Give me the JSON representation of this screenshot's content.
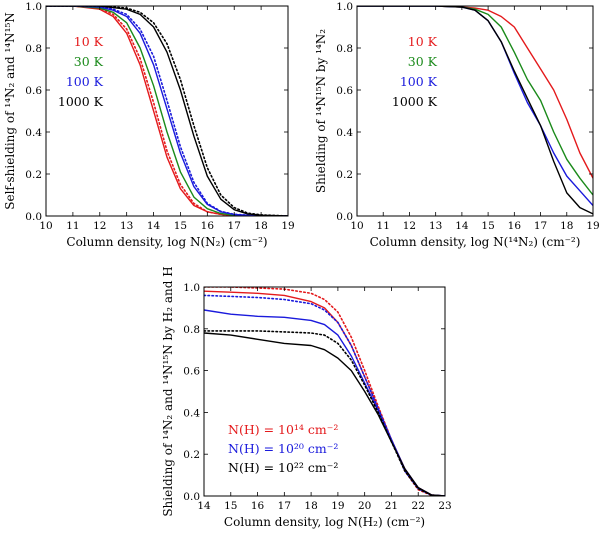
{
  "chart_data": [
    {
      "type": "line",
      "xlabel": "Column density, log N(N₂) (cm⁻²)",
      "ylabel": "Self-shielding of ¹⁴N₂ and ¹⁴N¹⁵N",
      "xlim": [
        10,
        19
      ],
      "ylim": [
        0.0,
        1.0
      ],
      "xticks": [
        "10",
        "11",
        "12",
        "13",
        "14",
        "15",
        "16",
        "17",
        "18",
        "19"
      ],
      "yticks": [
        "0.0",
        "0.2",
        "0.4",
        "0.6",
        "0.8",
        "1.0"
      ],
      "legend": [
        {
          "label": "10 K",
          "color": "#e41a1c"
        },
        {
          "label": "30 K",
          "color": "#1a8a1a"
        },
        {
          "label": "100 K",
          "color": "#1a1adc"
        },
        {
          "label": "1000 K",
          "color": "#000000"
        }
      ],
      "series": [
        {
          "name": "10 K",
          "color": "#e41a1c",
          "style": "solid",
          "x": [
            10,
            11,
            12,
            12.5,
            13,
            13.5,
            14,
            14.5,
            15,
            15.5,
            16,
            16.5,
            17,
            18,
            19
          ],
          "y": [
            1.0,
            1.0,
            0.985,
            0.95,
            0.87,
            0.72,
            0.5,
            0.28,
            0.13,
            0.05,
            0.02,
            0.008,
            0.003,
            0.0,
            0.0
          ]
        },
        {
          "name": "10 K",
          "color": "#e41a1c",
          "style": "dotted",
          "x": [
            10,
            11,
            12,
            12.5,
            13,
            13.5,
            14,
            14.5,
            15,
            15.5,
            16,
            16.5,
            17,
            18,
            19
          ],
          "y": [
            1.0,
            1.0,
            0.99,
            0.96,
            0.89,
            0.75,
            0.54,
            0.31,
            0.15,
            0.06,
            0.02,
            0.008,
            0.003,
            0.0,
            0.0
          ]
        },
        {
          "name": "30 K",
          "color": "#1a8a1a",
          "style": "solid",
          "x": [
            10,
            11,
            12,
            12.5,
            13,
            13.5,
            14,
            14.5,
            15,
            15.5,
            16,
            16.5,
            17,
            18,
            19
          ],
          "y": [
            1.0,
            1.0,
            0.99,
            0.97,
            0.92,
            0.8,
            0.62,
            0.4,
            0.21,
            0.09,
            0.035,
            0.012,
            0.004,
            0.0,
            0.0
          ]
        },
        {
          "name": "100 K",
          "color": "#1a1adc",
          "style": "solid",
          "x": [
            10,
            11,
            12,
            12.5,
            13,
            13.5,
            14,
            14.5,
            15,
            15.5,
            16,
            16.5,
            17,
            18,
            19
          ],
          "y": [
            1.0,
            1.0,
            0.995,
            0.98,
            0.95,
            0.87,
            0.72,
            0.51,
            0.3,
            0.14,
            0.055,
            0.02,
            0.007,
            0.0,
            0.0
          ]
        },
        {
          "name": "100 K",
          "color": "#1a1adc",
          "style": "dotted",
          "x": [
            10,
            11,
            12,
            12.5,
            13,
            13.5,
            14,
            14.5,
            15,
            15.5,
            16,
            16.5,
            17,
            18,
            19
          ],
          "y": [
            1.0,
            1.0,
            0.997,
            0.985,
            0.96,
            0.89,
            0.76,
            0.55,
            0.33,
            0.16,
            0.06,
            0.022,
            0.008,
            0.0,
            0.0
          ]
        },
        {
          "name": "1000 K",
          "color": "#000000",
          "style": "solid",
          "x": [
            10,
            11,
            12,
            13,
            13.5,
            14,
            14.5,
            15,
            15.5,
            16,
            16.5,
            17,
            17.5,
            18,
            19
          ],
          "y": [
            1.0,
            1.0,
            1.0,
            0.985,
            0.96,
            0.9,
            0.78,
            0.6,
            0.38,
            0.19,
            0.08,
            0.03,
            0.01,
            0.004,
            0.0
          ]
        },
        {
          "name": "1000 K",
          "color": "#000000",
          "style": "dotted",
          "x": [
            10,
            11,
            12,
            13,
            13.5,
            14,
            14.5,
            15,
            15.5,
            16,
            16.5,
            17,
            17.5,
            18,
            19
          ],
          "y": [
            1.0,
            1.0,
            1.0,
            0.99,
            0.97,
            0.92,
            0.82,
            0.65,
            0.43,
            0.23,
            0.1,
            0.04,
            0.014,
            0.005,
            0.0
          ]
        }
      ]
    },
    {
      "type": "line",
      "xlabel": "Column density, log N(¹⁴N₂) (cm⁻²)",
      "ylabel": "Shielding of ¹⁴N¹⁵N by ¹⁴N₂",
      "xlim": [
        10,
        19
      ],
      "ylim": [
        0.0,
        1.0
      ],
      "xticks": [
        "10",
        "11",
        "12",
        "13",
        "14",
        "15",
        "16",
        "17",
        "18",
        "19"
      ],
      "yticks": [
        "0.0",
        "0.2",
        "0.4",
        "0.6",
        "0.8",
        "1.0"
      ],
      "legend": [
        {
          "label": "10 K",
          "color": "#e41a1c"
        },
        {
          "label": "30 K",
          "color": "#1a8a1a"
        },
        {
          "label": "100 K",
          "color": "#1a1adc"
        },
        {
          "label": "1000 K",
          "color": "#000000"
        }
      ],
      "series": [
        {
          "name": "10 K",
          "color": "#e41a1c",
          "style": "solid",
          "x": [
            10,
            12,
            13,
            14,
            14.5,
            15,
            15.5,
            16,
            16.5,
            17,
            17.5,
            18,
            18.5,
            19
          ],
          "y": [
            1.0,
            1.0,
            1.0,
            0.995,
            0.99,
            0.98,
            0.95,
            0.9,
            0.8,
            0.7,
            0.6,
            0.46,
            0.3,
            0.18
          ]
        },
        {
          "name": "30 K",
          "color": "#1a8a1a",
          "style": "solid",
          "x": [
            10,
            12,
            13,
            14,
            14.5,
            15,
            15.5,
            16,
            16.5,
            17,
            17.5,
            18,
            18.5,
            19
          ],
          "y": [
            1.0,
            1.0,
            1.0,
            0.995,
            0.985,
            0.96,
            0.9,
            0.78,
            0.65,
            0.55,
            0.4,
            0.27,
            0.18,
            0.1
          ]
        },
        {
          "name": "100 K",
          "color": "#1a1adc",
          "style": "solid",
          "x": [
            10,
            12,
            13,
            14,
            14.5,
            15,
            15.5,
            16,
            16.5,
            17,
            17.5,
            18,
            18.5,
            19
          ],
          "y": [
            1.0,
            1.0,
            1.0,
            0.995,
            0.98,
            0.93,
            0.83,
            0.68,
            0.54,
            0.43,
            0.3,
            0.19,
            0.12,
            0.05
          ]
        },
        {
          "name": "1000 K",
          "color": "#000000",
          "style": "solid",
          "x": [
            10,
            12,
            13,
            14,
            14.5,
            15,
            15.5,
            16,
            16.5,
            17,
            17.5,
            18,
            18.5,
            19
          ],
          "y": [
            1.0,
            1.0,
            1.0,
            0.995,
            0.98,
            0.93,
            0.83,
            0.69,
            0.56,
            0.43,
            0.26,
            0.11,
            0.04,
            0.01
          ]
        }
      ]
    },
    {
      "type": "line",
      "xlabel": "Column density, log N(H₂) (cm⁻²)",
      "ylabel": "Shielding of ¹⁴N₂ and ¹⁴N¹⁵N by H₂ and H",
      "xlim": [
        14,
        23
      ],
      "ylim": [
        0.0,
        1.0
      ],
      "xticks": [
        "14",
        "15",
        "16",
        "17",
        "18",
        "19",
        "20",
        "21",
        "22",
        "23"
      ],
      "yticks": [
        "0.0",
        "0.2",
        "0.4",
        "0.6",
        "0.8",
        "1.0"
      ],
      "legend": [
        {
          "label": "N(H) = 10¹⁴ cm⁻²",
          "color": "#e41a1c"
        },
        {
          "label": "N(H) = 10²⁰ cm⁻²",
          "color": "#1a1adc"
        },
        {
          "label": "N(H) = 10²² cm⁻²",
          "color": "#000000"
        }
      ],
      "series": [
        {
          "name": "N(H) = 10¹⁴ cm⁻²",
          "color": "#e41a1c",
          "style": "solid",
          "x": [
            14,
            15,
            16,
            17,
            18,
            18.5,
            19,
            19.5,
            20,
            20.5,
            21,
            21.5,
            22,
            22.5,
            23
          ],
          "y": [
            0.98,
            0.975,
            0.97,
            0.96,
            0.93,
            0.9,
            0.83,
            0.72,
            0.57,
            0.42,
            0.27,
            0.13,
            0.04,
            0.005,
            0.0
          ]
        },
        {
          "name": "N(H) = 10¹⁴ cm⁻²",
          "color": "#e41a1c",
          "style": "dotted",
          "x": [
            14,
            15,
            16,
            17,
            18,
            18.5,
            19,
            19.5,
            20,
            20.5,
            21,
            21.5,
            22,
            22.5,
            23
          ],
          "y": [
            1.0,
            1.0,
            0.995,
            0.99,
            0.97,
            0.94,
            0.88,
            0.76,
            0.6,
            0.43,
            0.27,
            0.12,
            0.03,
            0.003,
            0.0
          ]
        },
        {
          "name": "N(H) = 10²⁰ cm⁻²",
          "color": "#1a1adc",
          "style": "solid",
          "x": [
            14,
            15,
            16,
            17,
            18,
            18.5,
            19,
            19.5,
            20,
            20.5,
            21,
            21.5,
            22,
            22.5,
            23
          ],
          "y": [
            0.89,
            0.87,
            0.86,
            0.855,
            0.84,
            0.82,
            0.77,
            0.67,
            0.54,
            0.41,
            0.27,
            0.13,
            0.04,
            0.005,
            0.0
          ]
        },
        {
          "name": "N(H) = 10²⁰ cm⁻²",
          "color": "#1a1adc",
          "style": "dotted",
          "x": [
            14,
            15,
            16,
            17,
            18,
            18.5,
            19,
            19.5,
            20,
            20.5,
            21,
            21.5,
            22,
            22.5,
            23
          ],
          "y": [
            0.96,
            0.955,
            0.95,
            0.94,
            0.92,
            0.89,
            0.83,
            0.72,
            0.57,
            0.42,
            0.27,
            0.12,
            0.035,
            0.004,
            0.0
          ]
        },
        {
          "name": "N(H) = 10²² cm⁻²",
          "color": "#000000",
          "style": "solid",
          "x": [
            14,
            15,
            16,
            17,
            18,
            18.5,
            19,
            19.5,
            20,
            20.5,
            21,
            21.5,
            22,
            22.5,
            23
          ],
          "y": [
            0.78,
            0.77,
            0.75,
            0.73,
            0.72,
            0.7,
            0.66,
            0.6,
            0.5,
            0.39,
            0.26,
            0.13,
            0.04,
            0.005,
            0.0
          ]
        },
        {
          "name": "N(H) = 10²² cm⁻²",
          "color": "#000000",
          "style": "dotted",
          "x": [
            14,
            15,
            16,
            17,
            18,
            18.5,
            19,
            19.5,
            20,
            20.5,
            21,
            21.5,
            22,
            22.5,
            23
          ],
          "y": [
            0.79,
            0.79,
            0.79,
            0.785,
            0.78,
            0.77,
            0.73,
            0.65,
            0.53,
            0.4,
            0.26,
            0.12,
            0.035,
            0.004,
            0.0
          ]
        }
      ]
    }
  ]
}
